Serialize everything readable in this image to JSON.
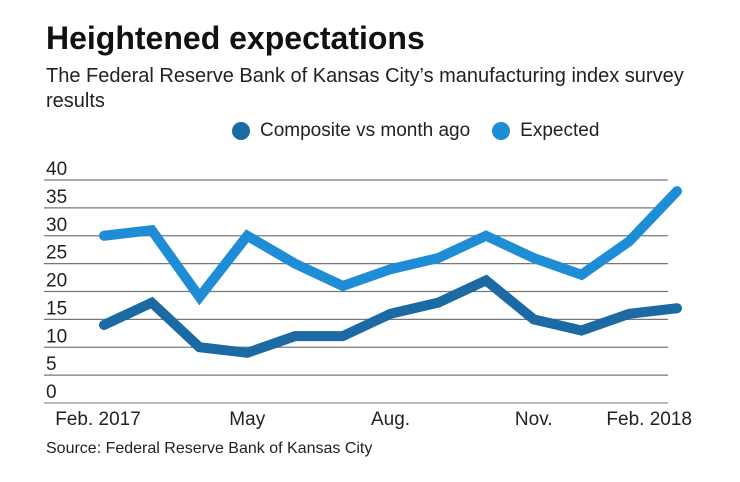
{
  "chart_data": {
    "type": "line",
    "title": "Heightened expectations",
    "subtitle": "The Federal Reserve Bank of Kansas City’s manufacturing index survey results",
    "source": "Source: Federal Reserve Bank of Kansas City",
    "x": [
      "Feb. 2017",
      "Mar. 2017",
      "Apr. 2017",
      "May 2017",
      "Jun. 2017",
      "Jul. 2017",
      "Aug. 2017",
      "Sep. 2017",
      "Oct. 2017",
      "Nov. 2017",
      "Dec. 2017",
      "Jan. 2018",
      "Feb. 2018"
    ],
    "x_tick_labels": [
      {
        "index": 0,
        "label": "Feb. 2017"
      },
      {
        "index": 3,
        "label": "May"
      },
      {
        "index": 6,
        "label": "Aug."
      },
      {
        "index": 9,
        "label": "Nov."
      },
      {
        "index": 12,
        "label": "Feb. 2018"
      }
    ],
    "y_ticks": [
      0,
      5,
      10,
      15,
      20,
      25,
      30,
      35,
      40
    ],
    "ylim": [
      0,
      40
    ],
    "grid": true,
    "legend_position": "top",
    "series": [
      {
        "name": "Composite vs month ago",
        "color": "#1c6aa3",
        "values": [
          14,
          18,
          10,
          9,
          12,
          12,
          16,
          18,
          22,
          15,
          13,
          16,
          17
        ]
      },
      {
        "name": "Expected",
        "color": "#1f8dd6",
        "values": [
          30,
          31,
          19,
          30,
          25,
          21,
          24,
          26,
          30,
          26,
          23,
          29,
          38
        ]
      }
    ]
  }
}
